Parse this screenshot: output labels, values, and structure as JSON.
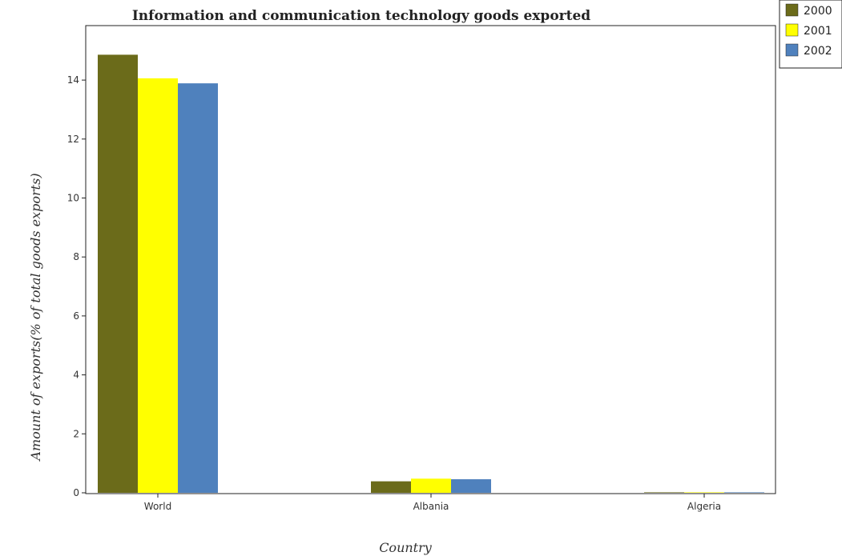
{
  "chart_data": {
    "type": "bar",
    "title": "Information and communication technology goods exported",
    "xlabel": "Country",
    "ylabel": "Amount of exports(% of total goods exports)",
    "categories": [
      "World",
      "Albania",
      "Algeria"
    ],
    "series": [
      {
        "name": "2000",
        "color": "#6b6b1a",
        "values": [
          14.86,
          0.39,
          0.01
        ]
      },
      {
        "name": "2001",
        "color": "#ffff00",
        "values": [
          14.06,
          0.48,
          0.005
        ]
      },
      {
        "name": "2002",
        "color": "#4f81bd",
        "values": [
          13.89,
          0.46,
          0.01
        ]
      }
    ],
    "ylim": [
      0,
      15.8
    ],
    "yticks": [
      0,
      2,
      4,
      6,
      8,
      10,
      12,
      14
    ],
    "legend_position": "top-right",
    "grid": false
  }
}
